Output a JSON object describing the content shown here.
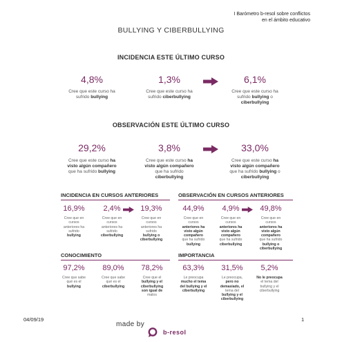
{
  "header": {
    "line1": "I Barómetro b-resol sobre conflictos",
    "line2": "en el ámbito educativo"
  },
  "title": "BULLYING Y CIBERBULLYING",
  "incidencia": {
    "heading": "INCIDENCIA ESTE ÚLTIMO CURSO",
    "items": [
      {
        "value": "4,8%",
        "d1": "Cree que este curso ha",
        "d2a": "sufrido ",
        "d2b": "bullying",
        "d3": ""
      },
      {
        "value": "1,3%",
        "d1": "Cree que este curso ha",
        "d2a": "sufrido ",
        "d2b": "ciberbullying",
        "d3": ""
      },
      {
        "value": "6,1%",
        "d1": "Cree que este curso ha",
        "d2a": "sufrido ",
        "d2b": "bullying",
        "d2c": " o",
        "d3": "ciberbullying"
      }
    ]
  },
  "observacion": {
    "heading": "OBSERVACIÓN ESTE ÚLTIMO CURSO",
    "items": [
      {
        "value": "29,2%",
        "d1a": "Cree que este curso ",
        "d1b": "ha",
        "d2": "visto algún compañero",
        "d3a": "que ha sufrido ",
        "d3b": "bullying",
        "d4": ""
      },
      {
        "value": "3,8%",
        "d1a": "Cree que este curso ",
        "d1b": "ha",
        "d2": "visto algún compañero",
        "d3a": "que ha sufrido",
        "d3b": "",
        "d4": "ciberbullying"
      },
      {
        "value": "33,0%",
        "d1a": "Cree que este curso ",
        "d1b": "ha",
        "d2": "visto algún compañero",
        "d3a": "que ha sufrido ",
        "d3b": "bullying",
        "d3c": " o",
        "d4": "ciberbullying"
      }
    ]
  },
  "anteriores": {
    "inc_heading": "INCIDENCIA EN CURSOS ANTERIORES",
    "obs_heading": "OBSERVACIÓN EN CURSOS ANTERIORES",
    "inc": [
      {
        "value": "16,9%",
        "l1": "Cree que en",
        "l2": "cursos",
        "l3": "anteriores ha",
        "l4": "sufrido",
        "l5": "bullying",
        "l6": ""
      },
      {
        "value": "2,4%",
        "l1": "Cree que en",
        "l2": "cursos",
        "l3": "anteriores ha",
        "l4": "sufrido",
        "l5": "ciberbullying",
        "l6": ""
      },
      {
        "value": "19,3%",
        "l1": "Cree que en",
        "l2": "cursos",
        "l3": "anteriores ha",
        "l4": "sufrido",
        "l5": "bullying o",
        "l6": "ciberbullying"
      }
    ],
    "obs": [
      {
        "value": "44,9%",
        "l1": "Cree que en",
        "l2": "cursos",
        "l3": "anteriores ha",
        "l4": "visto algún",
        "l5": "compañero",
        "l6": "que ha sufrido",
        "l7": "bullying"
      },
      {
        "value": "4,9%",
        "l1": "Cree que en",
        "l2": "cursos",
        "l3": "anteriores ha",
        "l4": "visto algún",
        "l5": "compañero",
        "l6": "que ha sufrido",
        "l7": "ciberbullying"
      },
      {
        "value": "49,8%",
        "l1": "Cree que en",
        "l2": "cursos",
        "l3": "anteriores ha",
        "l4": "visto algún",
        "l5": "compañero",
        "l6": "que ha sufrido",
        "l7": "bullying o ciberbullying"
      }
    ]
  },
  "conocimiento": {
    "heading": "CONOCIMIENTO",
    "items": [
      {
        "value": "97,2%",
        "l1": "Cree que sabe",
        "l2": "qué es el",
        "l3": "bullying",
        "l4": "",
        "l5": ""
      },
      {
        "value": "89,0%",
        "l1": "Cree que sabe",
        "l2": "qué es el",
        "l3": "ciberbullying",
        "l4": "",
        "l5": ""
      },
      {
        "value": "78,2%",
        "l1": "Cree que el",
        "l2": "bullying y el",
        "l3": "ciberbullying",
        "l4": "son igual de",
        "l5": "malos"
      }
    ]
  },
  "importancia": {
    "heading": "IMPORTANCIA",
    "items": [
      {
        "value": "63,3%",
        "l1": "Le preocupa",
        "l2": "mucho el tema",
        "l3": "del bullying y el",
        "l4": "ciberbullying",
        "l5": ""
      },
      {
        "value": "31,5%",
        "l1": "Le preocupa,",
        "l2": "pero no",
        "l3": "demasiado, el",
        "l4": "tema del",
        "l5": "bullying y el ciberbullying"
      },
      {
        "value": "5,2%",
        "l1": "No le preocupa",
        "l2": "el tema del",
        "l3": "bullying y el",
        "l4": "ciberbullying",
        "l5": ""
      }
    ]
  },
  "footer": {
    "date": "04/09/19",
    "page": "1",
    "made_by": "made by",
    "brand": "b-resol"
  },
  "colors": {
    "accent": "#7a2a63",
    "text": "#333333"
  }
}
